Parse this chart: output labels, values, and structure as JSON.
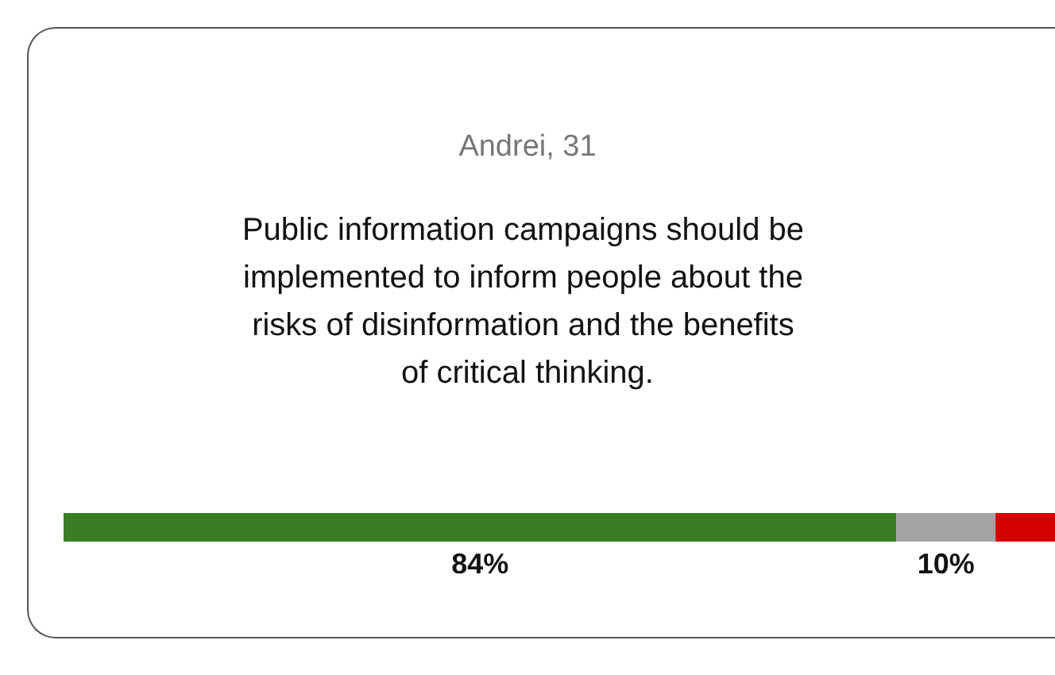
{
  "chart_data": {
    "type": "bar",
    "title": "Andrei, 31",
    "subtitle": "Public information campaigns should be implemented to inform people about the risks of disinformation and the benefits of critical thinking.",
    "orientation": "horizontal",
    "stacked": true,
    "categories": [
      null
    ],
    "tick_labels": false,
    "series": [
      {
        "color": "#3a7d22",
        "values": [
          84
        ],
        "value_labels": [
          "84%"
        ]
      },
      {
        "color": "#a3a3a3",
        "values": [
          10
        ],
        "value_labels": [
          "10%"
        ]
      },
      {
        "color": "#d40000",
        "values": [
          6
        ],
        "value_labels": [
          null
        ]
      }
    ]
  }
}
